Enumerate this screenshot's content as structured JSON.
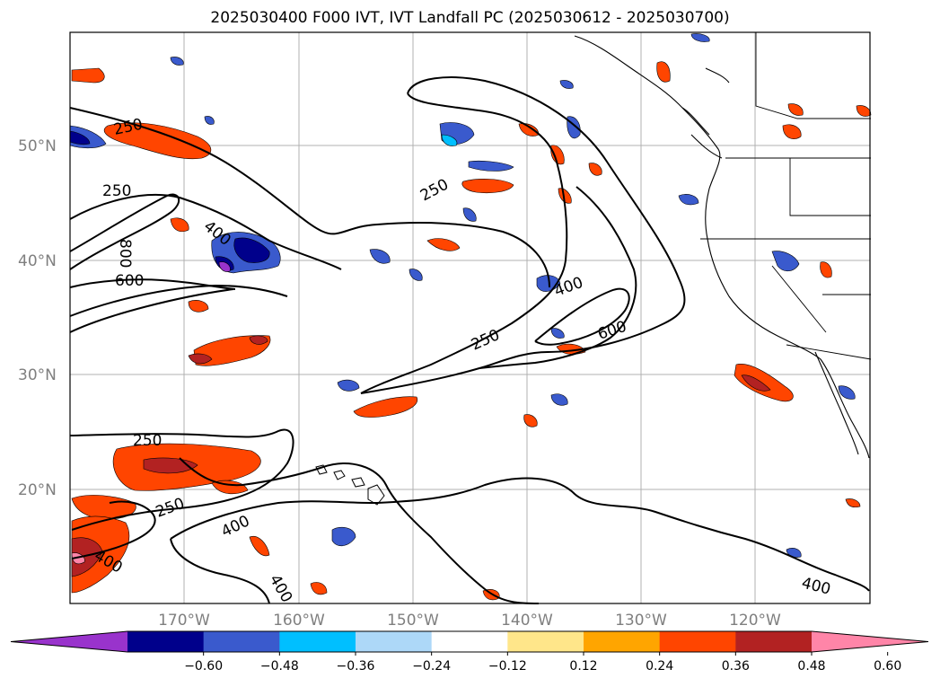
{
  "title": "2025030400 F000 IVT, IVT Landfall PC (2025030612 - 2025030700)",
  "axes": {
    "lat_ticks": [
      {
        "value": 50,
        "label": "50°N"
      },
      {
        "value": 40,
        "label": "40°N"
      },
      {
        "value": 30,
        "label": "30°N"
      },
      {
        "value": 20,
        "label": "20°N"
      }
    ],
    "lon_ticks": [
      {
        "value": -170,
        "label": "170°W"
      },
      {
        "value": -160,
        "label": "160°W"
      },
      {
        "value": -150,
        "label": "150°W"
      },
      {
        "value": -140,
        "label": "140°W"
      },
      {
        "value": -130,
        "label": "130°W"
      },
      {
        "value": -120,
        "label": "120°W"
      }
    ],
    "extent": {
      "lon": [
        -180,
        -110
      ],
      "lat": [
        10,
        60
      ]
    },
    "grid": true
  },
  "contour_labels": [
    "250",
    "250",
    "250",
    "250",
    "250",
    "250",
    "400",
    "400",
    "400",
    "400",
    "400",
    "600",
    "600",
    "800",
    "400"
  ],
  "colorbar": {
    "ticks": [
      "−0.60",
      "−0.48",
      "−0.36",
      "−0.24",
      "−0.12",
      "0.12",
      "0.24",
      "0.36",
      "0.48",
      "0.60"
    ],
    "colors": [
      "#9933cc",
      "#00008b",
      "#3a5acd",
      "#00bfff",
      "#add8f8",
      "#ffffff",
      "#ffe68a",
      "#ffa500",
      "#ff4500",
      "#b22222",
      "#ff85a8"
    ],
    "extend": "both"
  }
}
